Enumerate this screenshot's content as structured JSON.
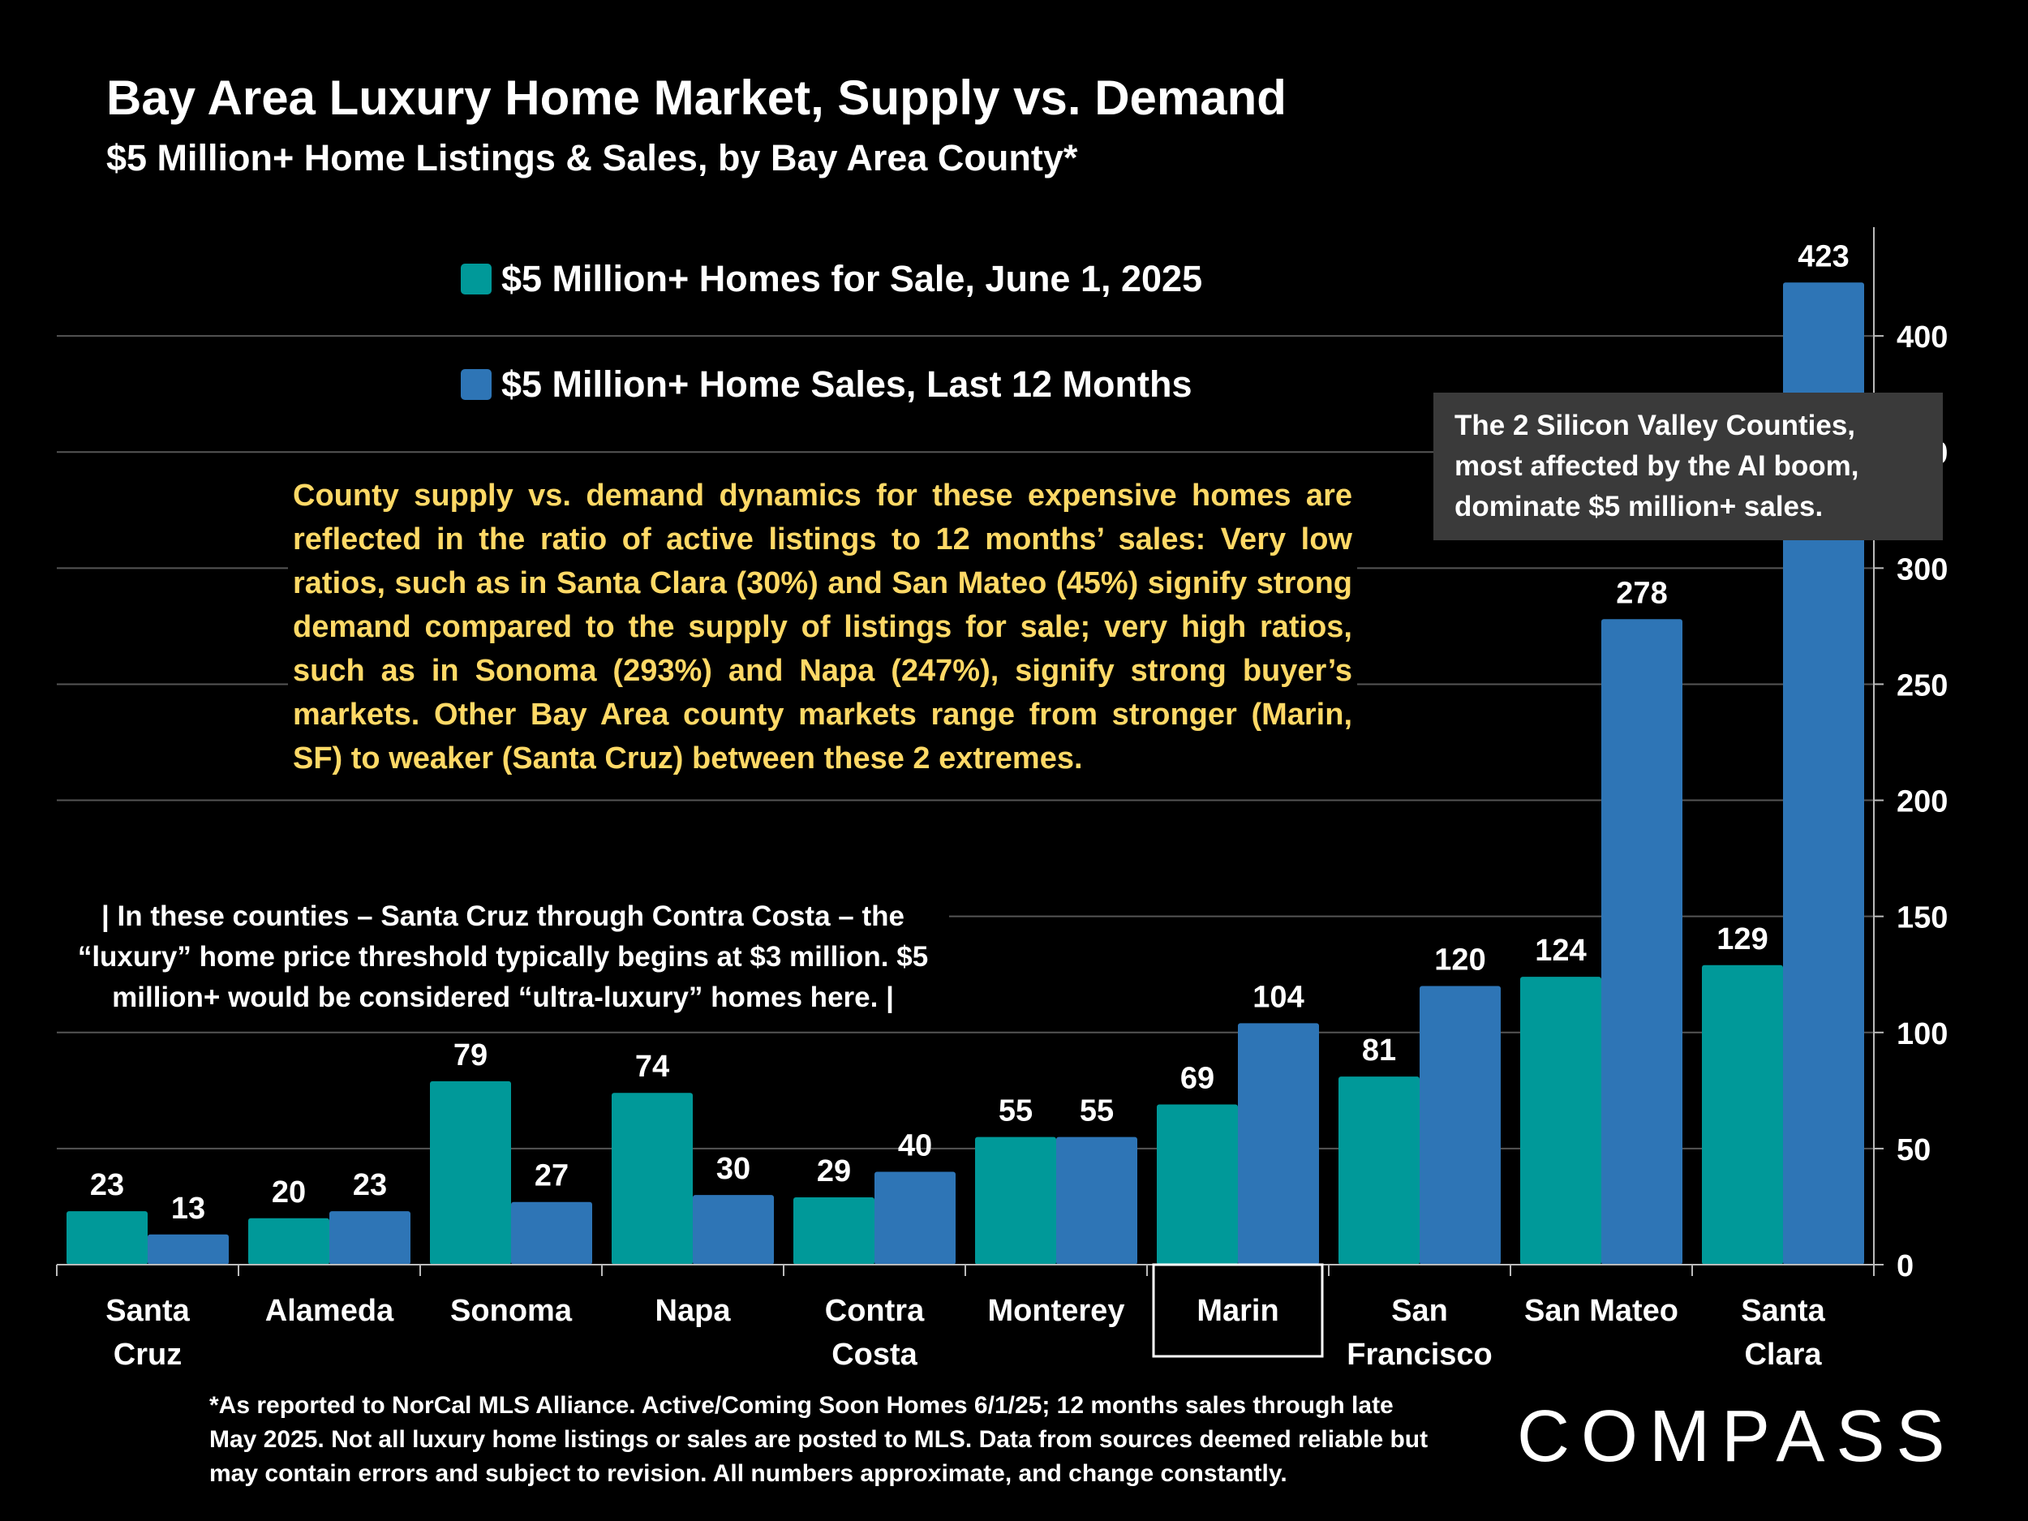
{
  "chart_data": {
    "type": "bar",
    "title": "Bay Area Luxury Home Market, Supply vs. Demand",
    "subtitle": "$5 Million+ Home Listings & Sales, by Bay Area County*",
    "categories": [
      [
        "Santa",
        "Cruz"
      ],
      [
        "Alameda"
      ],
      [
        "Sonoma"
      ],
      [
        "Napa"
      ],
      [
        "Contra",
        "Costa"
      ],
      [
        "Monterey"
      ],
      [
        "Marin"
      ],
      [
        "San",
        "Francisco"
      ],
      [
        "San Mateo"
      ],
      [
        "Santa",
        "Clara"
      ]
    ],
    "series": [
      {
        "name": "$5 Million+ Homes for Sale, June 1, 2025",
        "color": "#009999",
        "values": [
          23,
          20,
          79,
          74,
          29,
          55,
          69,
          81,
          124,
          129
        ]
      },
      {
        "name": "$5 Million+ Home Sales, Last 12 Months",
        "color": "#2e75b6",
        "values": [
          13,
          23,
          27,
          30,
          40,
          55,
          104,
          120,
          278,
          423
        ]
      }
    ],
    "ylim": [
      0,
      450
    ],
    "yticks": [
      0,
      50,
      100,
      150,
      200,
      250,
      300,
      350,
      400
    ],
    "yaxis_position": "right",
    "grid": true,
    "highlighted_category": "Marin",
    "legend_position": "top-center"
  },
  "annotations": {
    "ratio_note": "County supply vs. demand dynamics for these expensive homes are reflected in the ratio of active listings to 12 months’ sales:  Very low ratios, such as in Santa Clara (30%) and San Mateo (45%) signify strong demand compared to the supply of listings for sale; very high ratios, such as in Sonoma (293%) and Napa (247%), signify strong buyer’s markets. Other Bay Area county markets range from stronger (Marin, SF) to weaker (Santa Cruz) between these 2 extremes.",
    "threshold_note": "| In these counties – Santa Cruz through Contra Costa – the “luxury” home price threshold typically begins at $3 million. $5 million+ would be considered “ultra-luxury” homes here. |",
    "silicon_valley_note": "The 2 Silicon Valley Counties, most affected by the AI boom, dominate $5 million+ sales."
  },
  "footnote": "*As reported to NorCal MLS Alliance. Active/Coming Soon Homes 6/1/25; 12 months sales through late May 2025. Not all luxury home listings or sales are posted to MLS. Data from sources deemed reliable but may contain errors and subject to revision. All numbers approximate, and change constantly.",
  "logo": "COMPASS"
}
